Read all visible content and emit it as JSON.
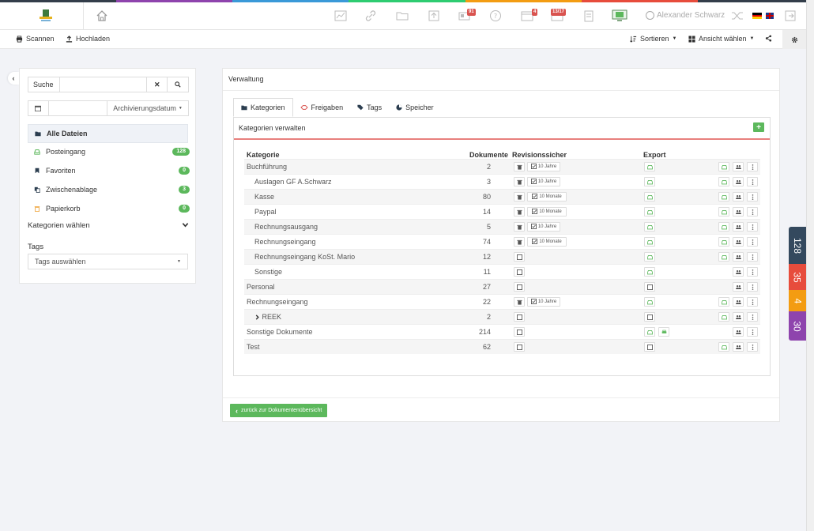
{
  "colors": {
    "rainbow": [
      "#333d4a",
      "#8e44ad",
      "#3a99d8",
      "#2ecc71",
      "#f39c12",
      "#e74c3c",
      "#333d4a"
    ],
    "green": "#5cb85c",
    "red_badge": "#d9534f"
  },
  "topbar": {
    "user_name": "Alexander Schwarz",
    "badge_inbox": "91",
    "badge_calendar": "4",
    "badge_tasks": "13/17",
    "icons": [
      "chart-icon",
      "link-icon",
      "folder-icon",
      "upload-icon",
      "inbox-icon",
      "help-icon",
      "calendar-icon",
      "tasks-icon",
      "clipboard-icon",
      "monitor-icon",
      "user-icon",
      "shuffle-icon",
      "flag-de-icon",
      "flag-uk-icon",
      "logout-icon"
    ]
  },
  "toolbar": {
    "scan_label": "Scannen",
    "upload_label": "Hochladen",
    "sort_label": "Sortieren",
    "view_label": "Ansicht wählen"
  },
  "sidebar": {
    "search_placeholder": "Suche",
    "date_dropdown": "Archivierungsdatum",
    "nav_active": "Alle Dateien",
    "items": [
      {
        "label": "Posteingang",
        "count": "128"
      },
      {
        "label": "Favoriten",
        "count": "0"
      },
      {
        "label": "Zwischenablage",
        "count": "3"
      },
      {
        "label": "Papierkorb",
        "count": "0"
      }
    ],
    "categories_label": "Kategorien wählen",
    "tags_label": "Tags",
    "tags_select": "Tags auswählen"
  },
  "main": {
    "title": "Verwaltung",
    "tabs": [
      "Kategorien",
      "Freigaben",
      "Tags",
      "Speicher"
    ],
    "section_title": "Kategorien verwalten",
    "columns": {
      "category": "Kategorie",
      "documents": "Dokumente",
      "audit": "Revisionssicher",
      "export": "Export"
    },
    "rows": [
      {
        "name": "Buchführung",
        "count": "2",
        "indent": 0,
        "audit": "10 Jahre",
        "export_state": "on",
        "export_extra": false,
        "actions": 3
      },
      {
        "name": "Auslagen GF A.Schwarz",
        "count": "3",
        "indent": 1,
        "audit": "10 Jahre",
        "export_state": "on",
        "export_extra": false,
        "actions": 3
      },
      {
        "name": "Kasse",
        "count": "80",
        "indent": 1,
        "audit": "10 Monate",
        "export_state": "on",
        "export_extra": false,
        "actions": 3
      },
      {
        "name": "Paypal",
        "count": "14",
        "indent": 1,
        "audit": "10 Monate",
        "export_state": "on",
        "export_extra": false,
        "actions": 3
      },
      {
        "name": "Rechnungsausgang",
        "count": "5",
        "indent": 1,
        "audit": "10 Jahre",
        "export_state": "on",
        "export_extra": false,
        "actions": 3
      },
      {
        "name": "Rechnungseingang",
        "count": "74",
        "indent": 1,
        "audit": "10 Monate",
        "export_state": "on",
        "export_extra": false,
        "actions": 3
      },
      {
        "name": "Rechnungseingang KoSt. Mario",
        "count": "12",
        "indent": 1,
        "audit": "",
        "export_state": "on",
        "export_extra": false,
        "actions": 3
      },
      {
        "name": "Sonstige",
        "count": "11",
        "indent": 1,
        "audit": "",
        "export_state": "on",
        "export_extra": false,
        "actions": 2
      },
      {
        "name": "Personal",
        "count": "27",
        "indent": 0,
        "audit": "",
        "export_state": "off",
        "export_extra": false,
        "actions": 2
      },
      {
        "name": "Rechnungseingang",
        "count": "22",
        "indent": 0,
        "audit": "10 Jahre",
        "export_state": "on",
        "export_extra": false,
        "actions": 3
      },
      {
        "name": "REEK",
        "count": "2",
        "indent": 1,
        "audit": "",
        "export_state": "off",
        "export_extra": false,
        "actions": 3,
        "expandable": true
      },
      {
        "name": "Sonstige Dokumente",
        "count": "214",
        "indent": 0,
        "audit": "",
        "export_state": "on",
        "export_extra": true,
        "actions": 2
      },
      {
        "name": "Test",
        "count": "62",
        "indent": 0,
        "audit": "",
        "export_state": "off",
        "export_extra": false,
        "actions": 3
      }
    ],
    "back_button": "zurück zur Dokumentenübersicht"
  },
  "side_badges": [
    {
      "value": "128",
      "color": "#34495e"
    },
    {
      "value": "35",
      "color": "#e74c3c"
    },
    {
      "value": "4",
      "color": "#f39c12"
    },
    {
      "value": "30",
      "color": "#8e44ad"
    }
  ]
}
